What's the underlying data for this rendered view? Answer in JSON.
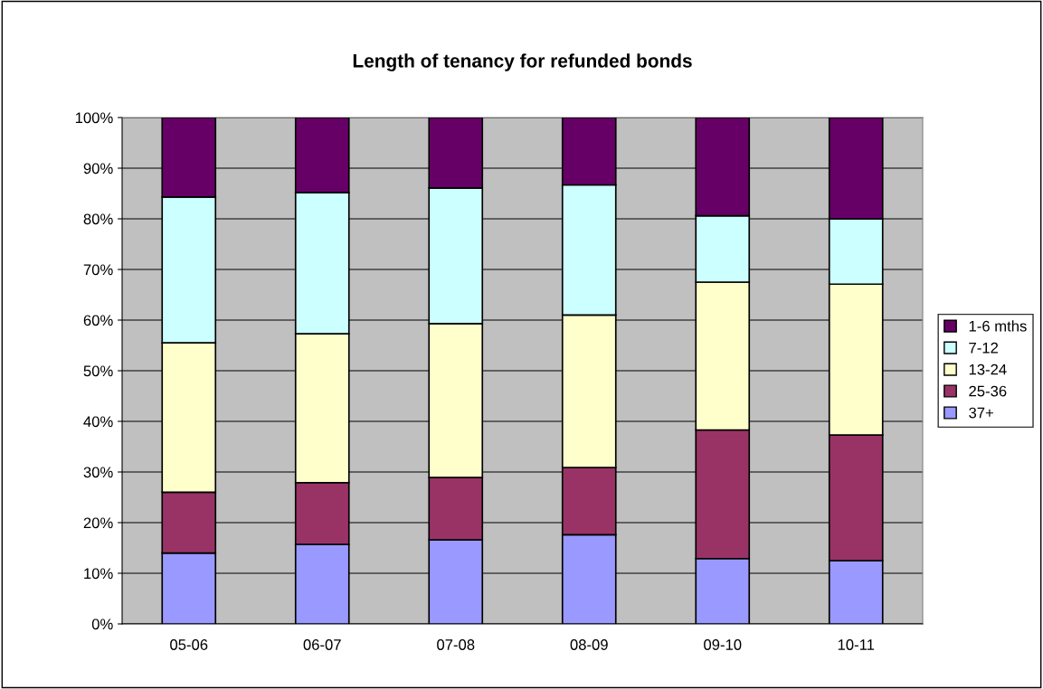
{
  "chart_data": {
    "type": "bar",
    "title": "Length of tenancy for refunded bonds",
    "stacked": true,
    "categories": [
      "05-06",
      "06-07",
      "07-08",
      "08-09",
      "09-10",
      "10-11"
    ],
    "series": [
      {
        "name": "37+",
        "color": "#9999ff",
        "values": [
          14.0,
          15.7,
          16.6,
          17.6,
          12.9,
          12.5
        ]
      },
      {
        "name": "25-36",
        "color": "#993366",
        "values": [
          12.0,
          12.2,
          12.3,
          13.3,
          25.4,
          24.8
        ]
      },
      {
        "name": "13-24",
        "color": "#ffffcc",
        "values": [
          29.5,
          29.4,
          30.4,
          30.1,
          29.2,
          29.8
        ]
      },
      {
        "name": "7-12",
        "color": "#ccffff",
        "values": [
          28.8,
          27.9,
          26.8,
          25.7,
          13.1,
          12.9
        ]
      },
      {
        "name": "1-6 mths",
        "color": "#660066",
        "values": [
          15.7,
          14.8,
          13.9,
          13.3,
          19.4,
          20.0
        ]
      }
    ],
    "ylim": [
      0,
      100
    ],
    "yticks": [
      {
        "value": 0,
        "label": "0%"
      },
      {
        "value": 10,
        "label": "10%"
      },
      {
        "value": 20,
        "label": "20%"
      },
      {
        "value": 30,
        "label": "30%"
      },
      {
        "value": 40,
        "label": "40%"
      },
      {
        "value": 50,
        "label": "50%"
      },
      {
        "value": 60,
        "label": "60%"
      },
      {
        "value": 70,
        "label": "70%"
      },
      {
        "value": 80,
        "label": "80%"
      },
      {
        "value": 90,
        "label": "90%"
      },
      {
        "value": 100,
        "label": "100%"
      }
    ],
    "grid": "y",
    "legend": "right"
  }
}
